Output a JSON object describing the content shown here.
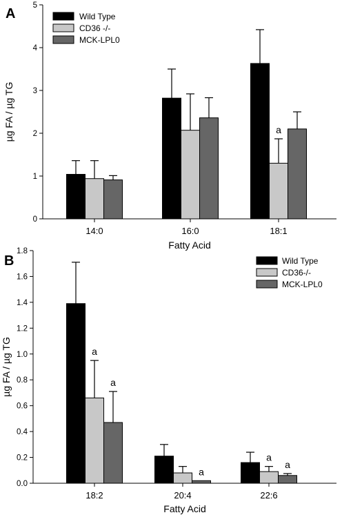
{
  "colors": {
    "Wild Type": "#000000",
    "CD36 -/-": "#c8c8c8",
    "CD36-/-": "#c8c8c8",
    "MCK-LPL0": "#666666",
    "axis": "#000000"
  },
  "chart_data": [
    {
      "panel": "A",
      "type": "bar",
      "xlabel": "Fatty Acid",
      "ylabel": "µg FA / µg TG",
      "ylim": [
        0,
        5
      ],
      "yticks": [
        "0",
        "1",
        "2",
        "3",
        "4",
        "5"
      ],
      "categories": [
        "14:0",
        "16:0",
        "18:1"
      ],
      "legend_position": "top-left",
      "series": [
        {
          "name": "Wild Type",
          "values": [
            1.04,
            2.82,
            3.63
          ],
          "errors": [
            0.32,
            0.68,
            0.79
          ],
          "labels": [
            "",
            "",
            ""
          ]
        },
        {
          "name": "CD36 -/-",
          "values": [
            0.94,
            2.07,
            1.3
          ],
          "errors": [
            0.42,
            0.85,
            0.57
          ],
          "labels": [
            "",
            "",
            "a"
          ]
        },
        {
          "name": "MCK-LPL0",
          "values": [
            0.91,
            2.36,
            2.1
          ],
          "errors": [
            0.1,
            0.47,
            0.4
          ],
          "labels": [
            "",
            "",
            ""
          ]
        }
      ]
    },
    {
      "panel": "B",
      "type": "bar",
      "xlabel": "Fatty Acid",
      "ylabel": "µg FA / µg TG",
      "ylim": [
        0,
        1.8
      ],
      "yticks": [
        "0.0",
        "0.2",
        "0.4",
        "0.6",
        "0.8",
        "1.0",
        "1.2",
        "1.4",
        "1.6",
        "1.8"
      ],
      "categories": [
        "18:2",
        "20:4",
        "22:6"
      ],
      "legend_position": "top-right",
      "series": [
        {
          "name": "Wild Type",
          "values": [
            1.39,
            0.21,
            0.16
          ],
          "errors": [
            0.32,
            0.09,
            0.08
          ],
          "labels": [
            "",
            "",
            ""
          ]
        },
        {
          "name": "CD36-/-",
          "values": [
            0.66,
            0.08,
            0.09
          ],
          "errors": [
            0.29,
            0.05,
            0.04
          ],
          "labels": [
            "a",
            "",
            "a"
          ]
        },
        {
          "name": "MCK-LPL0",
          "values": [
            0.47,
            0.02,
            0.06
          ],
          "errors": [
            0.24,
            0.0,
            0.015
          ],
          "labels": [
            "a",
            "a",
            "a"
          ]
        }
      ]
    }
  ]
}
